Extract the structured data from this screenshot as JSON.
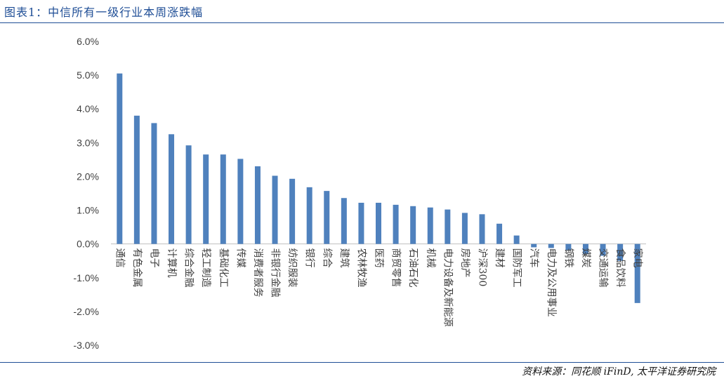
{
  "figure": {
    "title": "图表1：中信所有一级行业本周涨跌幅",
    "source": "资料来源：同花顺 iFinD, 太平洋证券研究院"
  },
  "chart_data": {
    "type": "bar",
    "title": "",
    "xlabel": "",
    "ylabel": "",
    "ylim": [
      -3.0,
      6.0
    ],
    "yticks": [
      "6.0%",
      "5.0%",
      "4.0%",
      "3.0%",
      "2.0%",
      "1.0%",
      "0.0%",
      "-1.0%",
      "-2.0%",
      "-3.0%"
    ],
    "grid": false,
    "legend": "none",
    "bar_color": "#4f81bd",
    "categories": [
      "通信",
      "有色金属",
      "电子",
      "计算机",
      "综合金融",
      "轻工制造",
      "基础化工",
      "传媒",
      "消费者服务",
      "非银行金融",
      "纺织服装",
      "银行",
      "综合",
      "建筑",
      "农林牧渔",
      "医药",
      "商贸零售",
      "石油石化",
      "机械",
      "电力设备及新能源",
      "房地产",
      "沪深300",
      "建材",
      "国防军工",
      "汽车",
      "电力及公用事业",
      "钢铁",
      "煤炭",
      "交通运输",
      "食品饮料",
      "家电"
    ],
    "values": [
      5.05,
      3.8,
      3.58,
      3.25,
      2.92,
      2.65,
      2.65,
      2.52,
      2.3,
      2.02,
      1.93,
      1.68,
      1.57,
      1.36,
      1.22,
      1.22,
      1.16,
      1.12,
      1.08,
      1.02,
      0.92,
      0.88,
      0.6,
      0.25,
      -0.1,
      -0.12,
      -0.18,
      -0.3,
      -0.35,
      -0.5,
      -1.75
    ]
  }
}
